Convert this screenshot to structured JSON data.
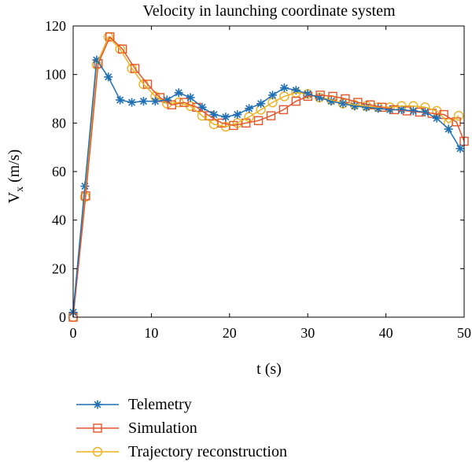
{
  "chart_data": {
    "type": "line",
    "title": "Velocity in launching coordinate system",
    "xlabel": "t (s)",
    "ylabel_main": "V",
    "ylabel_sub": "x",
    "ylabel_unit": " (m/s)",
    "xlim": [
      0,
      50
    ],
    "ylim": [
      0,
      120
    ],
    "xticks": [
      0,
      10,
      20,
      30,
      40,
      50
    ],
    "yticks": [
      0,
      20,
      40,
      60,
      80,
      100,
      120
    ],
    "grid": false,
    "legend_position": "bottom",
    "series": [
      {
        "name": "Telemetry",
        "color": "#1f6fb4",
        "marker": "asterisk",
        "x": [
          0,
          1.5,
          3.0,
          4.5,
          6.0,
          7.5,
          9.0,
          10.5,
          12.0,
          13.5,
          15.0,
          16.5,
          18.0,
          19.5,
          21.0,
          22.5,
          24.0,
          25.5,
          27.0,
          28.5,
          30.0,
          31.5,
          33.0,
          34.5,
          36.0,
          37.5,
          39.0,
          40.5,
          42.0,
          43.5,
          45.0,
          46.5,
          48.0,
          49.5
        ],
        "y": [
          2,
          54,
          106,
          99,
          89.5,
          88.5,
          89,
          89,
          89.5,
          92.5,
          90.5,
          86.5,
          83.5,
          82.5,
          83.5,
          86,
          88,
          91.5,
          94.5,
          93.5,
          92,
          90.5,
          89,
          88,
          87,
          86.5,
          86,
          85.5,
          85.5,
          85,
          84.5,
          82,
          77.5,
          69.5
        ]
      },
      {
        "name": "Simulation",
        "color": "#e4552c",
        "marker": "square",
        "x": [
          0,
          1.6,
          3.2,
          4.7,
          6.3,
          7.9,
          9.5,
          11.1,
          12.6,
          14.2,
          15.8,
          17.4,
          19.0,
          20.5,
          22.1,
          23.7,
          25.3,
          26.9,
          28.5,
          30.0,
          31.6,
          33.2,
          34.8,
          36.4,
          38.0,
          39.5,
          41.1,
          42.7,
          44.3,
          45.9,
          47.4,
          49.0,
          50.0
        ],
        "y": [
          0,
          50,
          104.5,
          115.5,
          110.5,
          102.5,
          96,
          90.5,
          87.5,
          88.5,
          86.5,
          83,
          80,
          79,
          80,
          81,
          83,
          85.5,
          89,
          91,
          91.5,
          91,
          90,
          88.5,
          87.5,
          86.5,
          85.5,
          85,
          84.5,
          84,
          83.5,
          80.5,
          72.5
        ]
      },
      {
        "name": "Trajectory reconstruction",
        "color": "#edb120",
        "marker": "circle",
        "x": [
          0,
          1.5,
          3.0,
          4.5,
          6.0,
          7.5,
          9.0,
          10.5,
          12.0,
          13.5,
          15.0,
          16.5,
          18.0,
          19.5,
          21.0,
          22.5,
          24.0,
          25.5,
          27.0,
          28.5,
          30.0,
          31.5,
          33.0,
          34.5,
          36.0,
          37.5,
          39.0,
          40.5,
          42.0,
          43.5,
          45.0,
          46.5,
          48.0,
          49.3
        ],
        "y": [
          0,
          49.5,
          104,
          115.5,
          110.5,
          102.5,
          96,
          91,
          88,
          88.5,
          87,
          83,
          79.5,
          78.5,
          80,
          82.5,
          85.5,
          88.5,
          91,
          92.5,
          92,
          90.5,
          89.5,
          88,
          87.5,
          87,
          86.5,
          86.5,
          87,
          87,
          86.5,
          85,
          80,
          83
        ]
      }
    ]
  }
}
